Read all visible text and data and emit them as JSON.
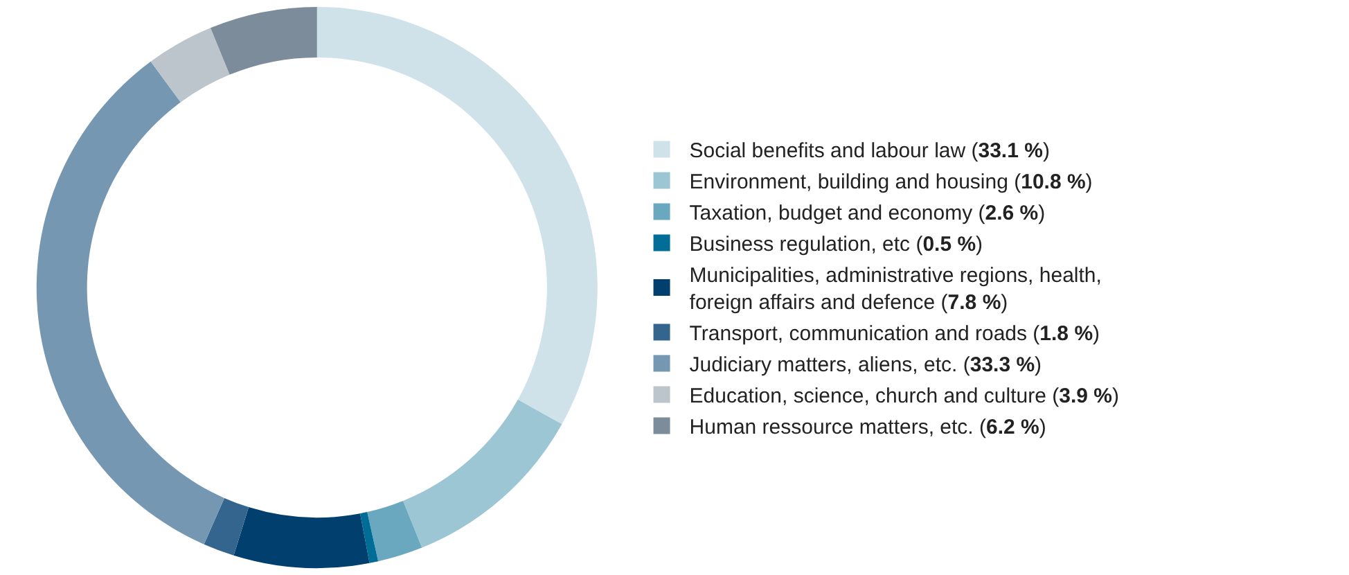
{
  "chart_data": {
    "type": "donut",
    "categories": [
      "Social benefits and labour law (33.1 %)",
      "Environment, building and housing (10.8 %)",
      "Taxation, budget and economy (2.6 %)",
      "Business regulation, etc (0.5 %)",
      "Municipalities, administrative regions, health, foreign affairs and defence (7.8 %)",
      "Transport, communication and roads (1.8 %)",
      "Judiciary matters, aliens, etc. (33.3 %)",
      "Education, science, church and culture (3.9 %)",
      "Human ressource matters, etc. (6.2 %)"
    ],
    "values": [
      33.1,
      10.8,
      2.6,
      0.5,
      7.8,
      1.8,
      33.3,
      3.9,
      6.2
    ],
    "colors": [
      "#cfe2ea",
      "#9dc6d5",
      "#69a8bf",
      "#006d96",
      "#003f6e",
      "#34658f",
      "#7697b2",
      "#bcc4cc",
      "#7c8c9a"
    ],
    "legend": "right"
  }
}
